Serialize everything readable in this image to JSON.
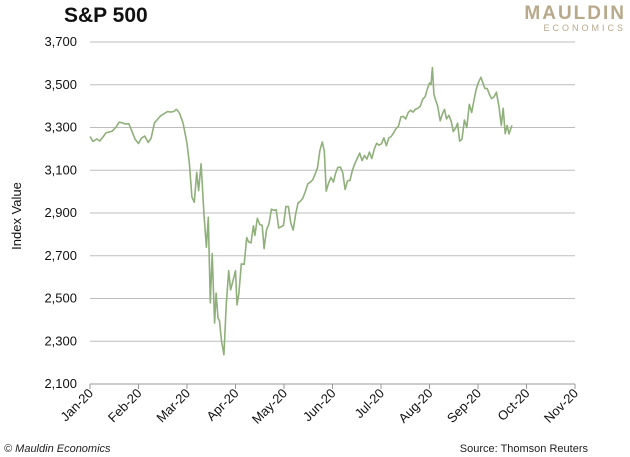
{
  "chart_data": {
    "type": "line",
    "title": "S&P 500",
    "ylabel": "Index Value",
    "xlabel": "",
    "ylim": [
      2100,
      3700
    ],
    "yticks": [
      "2,100",
      "2,300",
      "2,500",
      "2,700",
      "2,900",
      "3,100",
      "3,300",
      "3,500",
      "3,700"
    ],
    "xticks": [
      "Jan-20",
      "Feb-20",
      "Mar-20",
      "Apr-20",
      "May-20",
      "Jun-20",
      "Jul-20",
      "Aug-20",
      "Sep-20",
      "Oct-20",
      "Nov-20"
    ],
    "grid": true,
    "line_color": "#8fb07a",
    "series": [
      {
        "values": [
          [
            0.0,
            3258
          ],
          [
            0.06,
            3235
          ],
          [
            0.14,
            3246
          ],
          [
            0.2,
            3237
          ],
          [
            0.26,
            3253
          ],
          [
            0.33,
            3275
          ],
          [
            0.4,
            3279
          ],
          [
            0.46,
            3283
          ],
          [
            0.53,
            3300
          ],
          [
            0.6,
            3325
          ],
          [
            0.66,
            3322
          ],
          [
            0.73,
            3316
          ],
          [
            0.8,
            3318
          ],
          [
            0.86,
            3285
          ],
          [
            0.93,
            3245
          ],
          [
            1.0,
            3225
          ],
          [
            1.06,
            3250
          ],
          [
            1.13,
            3260
          ],
          [
            1.2,
            3230
          ],
          [
            1.26,
            3250
          ],
          [
            1.33,
            3322
          ],
          [
            1.4,
            3340
          ],
          [
            1.46,
            3355
          ],
          [
            1.53,
            3365
          ],
          [
            1.6,
            3375
          ],
          [
            1.66,
            3372
          ],
          [
            1.73,
            3375
          ],
          [
            1.78,
            3385
          ],
          [
            1.84,
            3370
          ],
          [
            1.92,
            3320
          ],
          [
            2.0,
            3225
          ],
          [
            2.05,
            3130
          ],
          [
            2.1,
            2975
          ],
          [
            2.15,
            2950
          ],
          [
            2.2,
            3090
          ],
          [
            2.24,
            3005
          ],
          [
            2.29,
            3130
          ],
          [
            2.35,
            2890
          ],
          [
            2.4,
            2740
          ],
          [
            2.44,
            2880
          ],
          [
            2.48,
            2480
          ],
          [
            2.52,
            2710
          ],
          [
            2.57,
            2385
          ],
          [
            2.6,
            2525
          ],
          [
            2.64,
            2409
          ],
          [
            2.67,
            2395
          ],
          [
            2.71,
            2305
          ],
          [
            2.76,
            2237
          ],
          [
            2.81,
            2475
          ],
          [
            2.86,
            2630
          ],
          [
            2.9,
            2540
          ],
          [
            2.95,
            2585
          ],
          [
            3.0,
            2630
          ],
          [
            3.03,
            2470
          ],
          [
            3.07,
            2525
          ],
          [
            3.12,
            2662
          ],
          [
            3.18,
            2660
          ],
          [
            3.23,
            2785
          ],
          [
            3.27,
            2765
          ],
          [
            3.32,
            2760
          ],
          [
            3.37,
            2840
          ],
          [
            3.4,
            2795
          ],
          [
            3.45,
            2875
          ],
          [
            3.5,
            2846
          ],
          [
            3.55,
            2842
          ],
          [
            3.59,
            2733
          ],
          [
            3.64,
            2821
          ],
          [
            3.69,
            2850
          ],
          [
            3.74,
            2918
          ],
          [
            3.79,
            2912
          ],
          [
            3.84,
            2915
          ],
          [
            3.89,
            2830
          ],
          [
            3.94,
            2835
          ],
          [
            3.99,
            2843
          ],
          [
            4.04,
            2930
          ],
          [
            4.09,
            2930
          ],
          [
            4.14,
            2852
          ],
          [
            4.19,
            2820
          ],
          [
            4.24,
            2893
          ],
          [
            4.29,
            2948
          ],
          [
            4.34,
            2955
          ],
          [
            4.39,
            2970
          ],
          [
            4.44,
            3000
          ],
          [
            4.49,
            3036
          ],
          [
            4.54,
            3044
          ],
          [
            4.59,
            3055
          ],
          [
            4.64,
            3080
          ],
          [
            4.69,
            3112
          ],
          [
            4.74,
            3193
          ],
          [
            4.79,
            3232
          ],
          [
            4.83,
            3190
          ],
          [
            4.87,
            3002
          ],
          [
            4.92,
            3041
          ],
          [
            4.97,
            3066
          ],
          [
            5.02,
            3045
          ],
          [
            5.06,
            3083
          ],
          [
            5.11,
            3113
          ],
          [
            5.16,
            3115
          ],
          [
            5.21,
            3090
          ],
          [
            5.26,
            3010
          ],
          [
            5.31,
            3050
          ],
          [
            5.36,
            3053
          ],
          [
            5.41,
            3100
          ],
          [
            5.46,
            3130
          ],
          [
            5.51,
            3155
          ],
          [
            5.56,
            3180
          ],
          [
            5.61,
            3145
          ],
          [
            5.66,
            3169
          ],
          [
            5.71,
            3152
          ],
          [
            5.76,
            3185
          ],
          [
            5.81,
            3155
          ],
          [
            5.86,
            3198
          ],
          [
            5.91,
            3226
          ],
          [
            5.96,
            3217
          ],
          [
            6.01,
            3224
          ],
          [
            6.06,
            3252
          ],
          [
            6.11,
            3215
          ],
          [
            6.16,
            3251
          ],
          [
            6.21,
            3258
          ],
          [
            6.26,
            3275
          ],
          [
            6.31,
            3295
          ],
          [
            6.36,
            3306
          ],
          [
            6.41,
            3350
          ],
          [
            6.46,
            3352
          ],
          [
            6.51,
            3340
          ],
          [
            6.56,
            3370
          ],
          [
            6.61,
            3381
          ],
          [
            6.66,
            3372
          ],
          [
            6.71,
            3385
          ],
          [
            6.76,
            3390
          ],
          [
            6.81,
            3400
          ],
          [
            6.86,
            3432
          ],
          [
            6.91,
            3444
          ],
          [
            6.96,
            3484
          ],
          [
            7.0,
            3508
          ],
          [
            7.03,
            3500
          ],
          [
            7.06,
            3580
          ],
          [
            7.09,
            3455
          ],
          [
            7.13,
            3426
          ],
          [
            7.17,
            3399
          ],
          [
            7.22,
            3331
          ],
          [
            7.26,
            3360
          ],
          [
            7.31,
            3385
          ],
          [
            7.35,
            3340
          ],
          [
            7.4,
            3357
          ],
          [
            7.45,
            3327
          ],
          [
            7.49,
            3281
          ],
          [
            7.54,
            3298
          ],
          [
            7.58,
            3320
          ],
          [
            7.62,
            3236
          ],
          [
            7.67,
            3246
          ],
          [
            7.72,
            3335
          ],
          [
            7.77,
            3300
          ],
          [
            7.82,
            3408
          ],
          [
            7.87,
            3370
          ],
          [
            7.91,
            3419
          ],
          [
            7.96,
            3477
          ],
          [
            8.01,
            3512
          ],
          [
            8.06,
            3535
          ],
          [
            8.1,
            3510
          ],
          [
            8.14,
            3483
          ],
          [
            8.19,
            3482
          ],
          [
            8.24,
            3453
          ],
          [
            8.28,
            3435
          ],
          [
            8.33,
            3443
          ],
          [
            8.38,
            3465
          ],
          [
            8.43,
            3400
          ],
          [
            8.48,
            3310
          ],
          [
            8.52,
            3390
          ],
          [
            8.56,
            3271
          ],
          [
            8.6,
            3310
          ],
          [
            8.64,
            3270
          ],
          [
            8.7,
            3310
          ]
        ]
      }
    ]
  }
}
